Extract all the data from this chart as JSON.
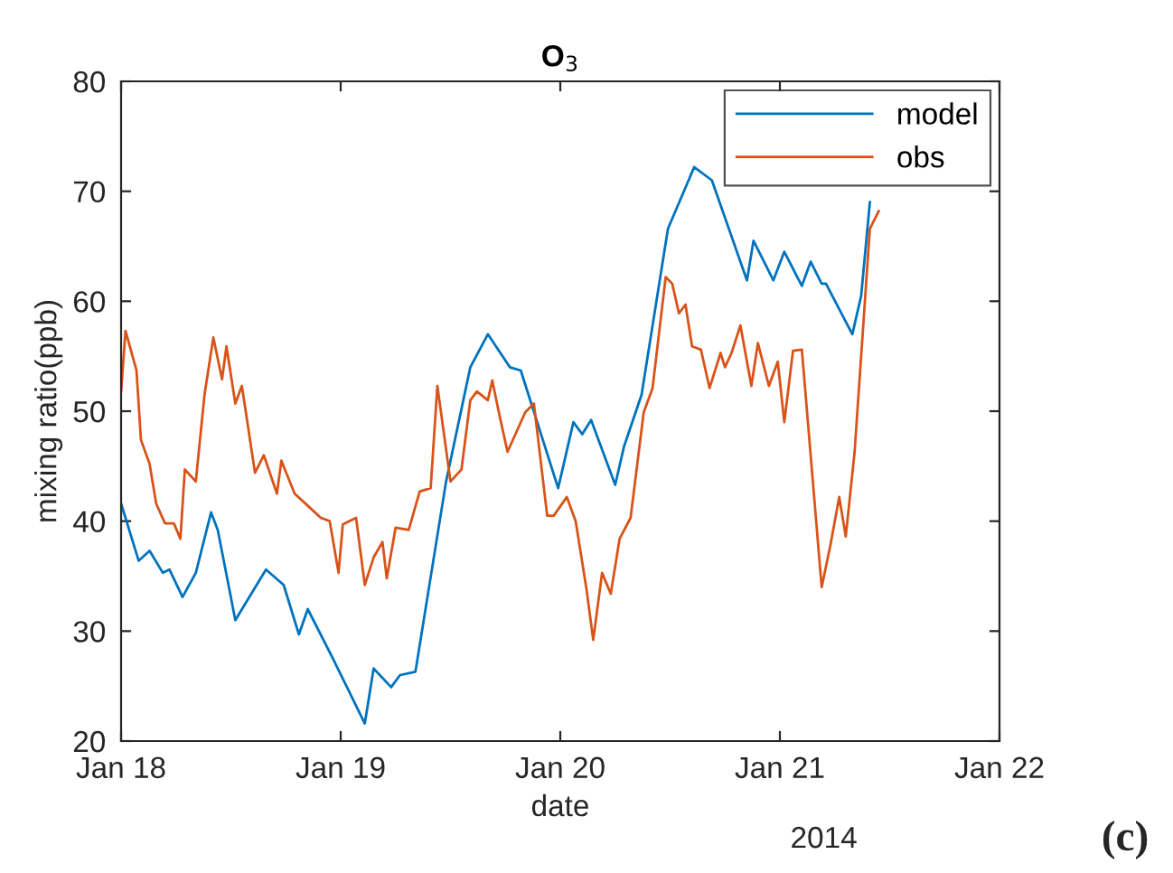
{
  "chart_data": {
    "type": "line",
    "title": "O$_{3}$",
    "xlabel": "date",
    "ylabel": "mixing ratio(ppb)",
    "annotations": [
      "2014",
      "(c)"
    ],
    "xlim": [
      "2014-01-18",
      "2014-01-22"
    ],
    "xticks": [
      {
        "value": "2014-01-18",
        "label": "Jan 18"
      },
      {
        "value": "2014-01-19",
        "label": "Jan 19"
      },
      {
        "value": "2014-01-20",
        "label": "Jan 20"
      },
      {
        "value": "2014-01-21",
        "label": "Jan 21"
      },
      {
        "value": "2014-01-22",
        "label": "Jan 22"
      }
    ],
    "ylim": [
      20,
      80
    ],
    "yticks": [
      20,
      30,
      40,
      50,
      60,
      70,
      80
    ],
    "grid": false,
    "legend": "top right",
    "series": [
      {
        "name": "model",
        "color": "#0072bd",
        "x": [
          "2014-01-18T00:00",
          "2014-01-18T01:55",
          "2014-01-18T03:07",
          "2014-01-18T04:34",
          "2014-01-18T05:17",
          "2014-01-18T06:43",
          "2014-01-18T08:10",
          "2014-01-18T09:50",
          "2014-01-18T10:34",
          "2014-01-18T12:29",
          "2014-01-18T15:50",
          "2014-01-18T17:46",
          "2014-01-18T19:26",
          "2014-01-18T20:24",
          "2014-01-18T23:02",
          "2014-01-19T02:38",
          "2014-01-19T03:36",
          "2014-01-19T05:31",
          "2014-01-19T06:29",
          "2014-01-19T08:10",
          "2014-01-19T11:31",
          "2014-01-19T14:10",
          "2014-01-19T16:05",
          "2014-01-19T18:29",
          "2014-01-19T19:41",
          "2014-01-19T23:46",
          "2014-01-20T01:26",
          "2014-01-20T02:24",
          "2014-01-20T03:22",
          "2014-01-20T06:00",
          "2014-01-20T06:58",
          "2014-01-20T08:53",
          "2014-01-20T11:46",
          "2014-01-20T14:38",
          "2014-01-20T16:34",
          "2014-01-20T20:24",
          "2014-01-20T21:07",
          "2014-01-20T23:17",
          "2014-01-21T00:29",
          "2014-01-21T02:24",
          "2014-01-21T03:22",
          "2014-01-21T04:34",
          "2014-01-21T05:02",
          "2014-01-21T07:55",
          "2014-01-21T08:53",
          "2014-01-21T09:50"
        ],
        "values": [
          41.6,
          36.4,
          37.3,
          35.3,
          35.6,
          33.1,
          35.3,
          40.8,
          39.2,
          31.0,
          35.6,
          34.2,
          29.7,
          32.0,
          27.7,
          21.6,
          26.6,
          24.9,
          26.0,
          26.3,
          43.6,
          54.0,
          57.0,
          54.0,
          53.7,
          43.0,
          49.0,
          47.9,
          49.2,
          43.3,
          46.8,
          51.5,
          66.6,
          72.2,
          71.0,
          61.9,
          65.5,
          61.9,
          64.5,
          61.4,
          63.6,
          61.6,
          61.6,
          57.0,
          60.5,
          69.0
        ]
      },
      {
        "name": "obs",
        "color": "#d95319",
        "x": [
          "2014-01-18T00:00",
          "2014-01-18T00:29",
          "2014-01-18T01:41",
          "2014-01-18T02:10",
          "2014-01-18T03:07",
          "2014-01-18T03:50",
          "2014-01-18T04:48",
          "2014-01-18T05:46",
          "2014-01-18T06:29",
          "2014-01-18T06:58",
          "2014-01-18T08:10",
          "2014-01-18T09:07",
          "2014-01-18T10:05",
          "2014-01-18T11:02",
          "2014-01-18T11:31",
          "2014-01-18T12:29",
          "2014-01-18T13:12",
          "2014-01-18T14:38",
          "2014-01-18T15:36",
          "2014-01-18T17:02",
          "2014-01-18T17:31",
          "2014-01-18T18:58",
          "2014-01-18T20:24",
          "2014-01-18T21:50",
          "2014-01-18T22:48",
          "2014-01-18T23:46",
          "2014-01-19T00:14",
          "2014-01-19T01:41",
          "2014-01-19T02:38",
          "2014-01-19T03:36",
          "2014-01-19T04:34",
          "2014-01-19T05:02",
          "2014-01-19T06:00",
          "2014-01-19T07:26",
          "2014-01-19T08:38",
          "2014-01-19T09:50",
          "2014-01-19T10:34",
          "2014-01-19T12:00",
          "2014-01-19T13:12",
          "2014-01-19T14:10",
          "2014-01-19T14:53",
          "2014-01-19T16:05",
          "2014-01-19T16:34",
          "2014-01-19T17:17",
          "2014-01-19T18:14",
          "2014-01-19T20:10",
          "2014-01-19T21:07",
          "2014-01-19T22:34",
          "2014-01-19T23:17",
          "2014-01-20T00:43",
          "2014-01-20T01:41",
          "2014-01-20T02:53",
          "2014-01-20T03:36",
          "2014-01-20T04:34",
          "2014-01-20T05:31",
          "2014-01-20T06:29",
          "2014-01-20T07:41",
          "2014-01-20T09:07",
          "2014-01-20T10:05",
          "2014-01-20T11:31",
          "2014-01-20T12:14",
          "2014-01-20T12:58",
          "2014-01-20T13:41",
          "2014-01-20T14:24",
          "2014-01-20T15:22",
          "2014-01-20T16:19",
          "2014-01-20T17:31",
          "2014-01-20T18:00",
          "2014-01-20T18:43",
          "2014-01-20T19:41",
          "2014-01-20T20:53",
          "2014-01-20T21:36",
          "2014-01-20T22:48",
          "2014-01-20T23:46",
          "2014-01-21T00:29",
          "2014-01-21T01:26",
          "2014-01-21T02:24",
          "2014-01-21T04:34",
          "2014-01-21T05:31",
          "2014-01-21T06:29",
          "2014-01-21T07:12",
          "2014-01-21T08:10",
          "2014-01-21T09:50",
          "2014-01-21T10:48"
        ],
        "values": [
          51.8,
          57.3,
          53.7,
          47.4,
          45.2,
          41.6,
          39.8,
          39.8,
          38.4,
          44.7,
          43.6,
          51.5,
          56.7,
          52.9,
          55.9,
          50.7,
          52.3,
          44.4,
          46.0,
          42.5,
          45.5,
          42.5,
          41.4,
          40.3,
          40.0,
          35.3,
          39.7,
          40.3,
          34.2,
          36.7,
          38.1,
          34.8,
          39.4,
          39.2,
          42.7,
          43.0,
          52.3,
          43.6,
          44.7,
          51.0,
          51.8,
          51.0,
          52.8,
          49.9,
          46.3,
          49.9,
          50.7,
          40.5,
          40.5,
          42.2,
          40.0,
          33.7,
          29.2,
          35.3,
          33.4,
          38.4,
          40.3,
          49.9,
          52.1,
          62.2,
          61.6,
          58.9,
          59.7,
          55.9,
          55.6,
          52.1,
          55.3,
          54.0,
          55.3,
          57.8,
          52.3,
          56.2,
          52.3,
          54.5,
          49.0,
          55.5,
          55.6,
          34.0,
          37.8,
          42.2,
          38.6,
          46.3,
          66.6,
          68.2
        ]
      }
    ]
  }
}
